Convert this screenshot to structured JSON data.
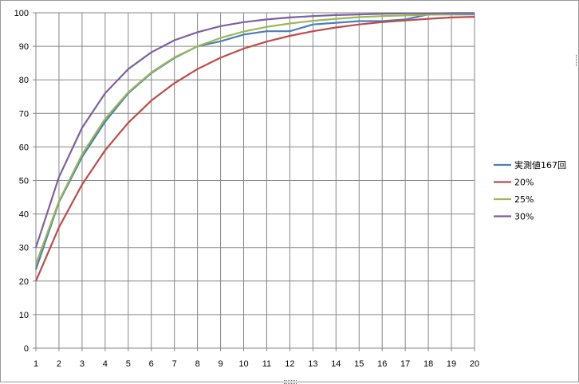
{
  "chart_data": {
    "type": "line",
    "title": "",
    "xlabel": "",
    "ylabel": "",
    "x": [
      1,
      2,
      3,
      4,
      5,
      6,
      7,
      8,
      9,
      10,
      11,
      12,
      13,
      14,
      15,
      16,
      17,
      18,
      19,
      20
    ],
    "ylim": [
      0,
      100
    ],
    "yticks": [
      0,
      10,
      20,
      30,
      40,
      50,
      60,
      70,
      80,
      90,
      100
    ],
    "grid": true,
    "legend_position": "right",
    "series": [
      {
        "name": "実測値167回",
        "color": "#4a7ebb",
        "values": [
          23.5,
          43.5,
          57.0,
          67.5,
          76.0,
          82.0,
          86.5,
          90.0,
          91.5,
          93.5,
          94.5,
          94.5,
          96.5,
          97.0,
          97.5,
          97.5,
          98.0,
          99.5,
          99.5,
          99.5
        ]
      },
      {
        "name": "20%",
        "color": "#be4b48",
        "values": [
          20.0,
          36.0,
          48.8,
          59.0,
          67.2,
          73.8,
          79.0,
          83.2,
          86.6,
          89.3,
          91.4,
          93.1,
          94.5,
          95.6,
          96.5,
          97.2,
          97.7,
          98.2,
          98.6,
          98.8
        ]
      },
      {
        "name": "25%",
        "color": "#98b954",
        "values": [
          25.0,
          43.8,
          57.8,
          68.4,
          76.3,
          82.2,
          86.7,
          90.0,
          92.5,
          94.4,
          95.8,
          96.8,
          97.6,
          98.2,
          98.7,
          99.0,
          99.2,
          99.4,
          99.6,
          99.7
        ]
      },
      {
        "name": "30%",
        "color": "#7d60a0",
        "values": [
          30.0,
          51.0,
          65.7,
          76.0,
          83.2,
          88.2,
          91.8,
          94.2,
          96.0,
          97.2,
          98.0,
          98.6,
          99.0,
          99.3,
          99.5,
          99.7,
          99.8,
          99.8,
          99.9,
          99.9
        ]
      }
    ]
  }
}
